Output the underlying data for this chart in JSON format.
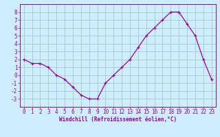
{
  "x": [
    0,
    1,
    2,
    3,
    4,
    5,
    6,
    7,
    8,
    9,
    10,
    11,
    12,
    13,
    14,
    15,
    16,
    17,
    18,
    19,
    20,
    21,
    22,
    23
  ],
  "y": [
    2,
    1.5,
    1.5,
    1,
    0,
    -0.5,
    -1.5,
    -2.5,
    -3,
    -3,
    -1,
    0,
    1,
    2,
    3.5,
    5,
    6,
    7,
    8,
    8,
    6.5,
    5,
    2,
    -0.5
  ],
  "line_color": "#990099",
  "marker_color": "#990099",
  "bg_color": "#cceeff",
  "grid_color": "#aacccc",
  "axis_color": "#990099",
  "xlabel": "Windchill (Refroidissement éolien,°C)",
  "ylim": [
    -4,
    9
  ],
  "xlim": [
    -0.5,
    23.5
  ],
  "yticks": [
    -3,
    -2,
    -1,
    0,
    1,
    2,
    3,
    4,
    5,
    6,
    7,
    8
  ],
  "xticks": [
    0,
    1,
    2,
    3,
    4,
    5,
    6,
    7,
    8,
    9,
    10,
    11,
    12,
    13,
    14,
    15,
    16,
    17,
    18,
    19,
    20,
    21,
    22,
    23
  ],
  "xlabel_fontsize": 5.5,
  "tick_fontsize": 5.5
}
